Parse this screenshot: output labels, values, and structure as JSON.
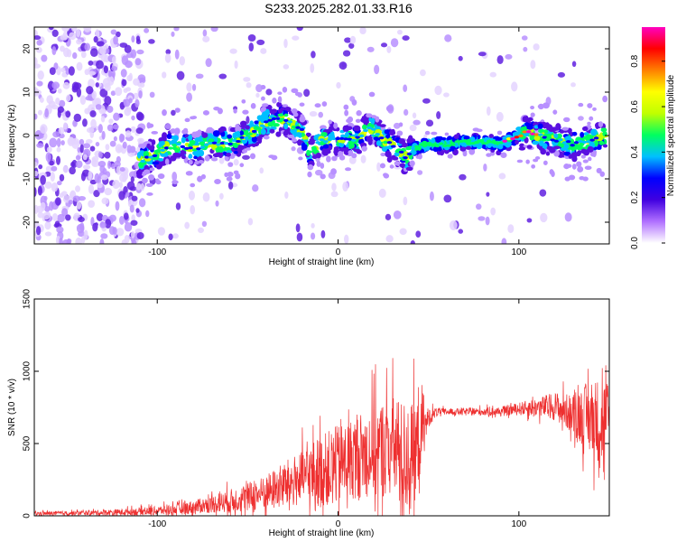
{
  "title": "S233.2025.282.01.33.R16",
  "chart_data": [
    {
      "type": "heatmap",
      "xlabel": "Height of straight line (km)",
      "ylabel": "Frequency (Hz)",
      "xlim": [
        -168,
        150
      ],
      "ylim": [
        -25,
        25
      ],
      "xticks": [
        -100,
        0,
        100
      ],
      "yticks": [
        -20,
        -10,
        0,
        10,
        20
      ],
      "colorbar": {
        "label": "Normalized spectral amplitude",
        "range": [
          0,
          0.95
        ],
        "ticks": [
          "0.0",
          "0.2",
          "0.4",
          "0.6",
          "0.8"
        ],
        "tick_values": [
          0,
          0.2,
          0.4,
          0.6,
          0.8
        ],
        "colors": [
          "#ffffff",
          "#b070ff",
          "#4000e0",
          "#0000ff",
          "#00c0ff",
          "#00ff60",
          "#c0ff00",
          "#ffff00",
          "#ff8000",
          "#ff0000",
          "#ff00c0"
        ]
      },
      "ridge": {
        "x": [
          -110,
          -100,
          -90,
          -80,
          -70,
          -60,
          -50,
          -40,
          -30,
          -20,
          -15,
          -10,
          0,
          10,
          18,
          25,
          32,
          38,
          42,
          50,
          60,
          70,
          80,
          90,
          95,
          100,
          104,
          110,
          120,
          130,
          140,
          148
        ],
        "y": [
          -6,
          -4,
          -2,
          -3,
          -2,
          -2,
          0,
          3,
          4,
          1,
          -4,
          -1,
          -1,
          -1,
          2,
          -1,
          -3,
          -5,
          -3,
          -2,
          -2,
          -1.5,
          -1.5,
          -2,
          -1,
          0,
          1,
          0,
          -1,
          -2,
          -1,
          0
        ]
      }
    },
    {
      "type": "line",
      "xlabel": "Height of straight line (km)",
      "ylabel": "SNR (10 * v/v)",
      "xlim": [
        -168,
        150
      ],
      "ylim": [
        0,
        1500
      ],
      "xticks": [
        -100,
        0,
        100
      ],
      "yticks": [
        0,
        500,
        1000,
        1500
      ],
      "color": "#ee3030",
      "envelope": {
        "x": [
          -168,
          -140,
          -120,
          -100,
          -90,
          -80,
          -70,
          -60,
          -50,
          -40,
          -30,
          -20,
          -10,
          0,
          10,
          20,
          30,
          35,
          40,
          45,
          50,
          55,
          60,
          70,
          80,
          90,
          100,
          110,
          120,
          130,
          140,
          150
        ],
        "base": [
          15,
          20,
          25,
          35,
          45,
          60,
          80,
          100,
          130,
          160,
          210,
          260,
          310,
          350,
          410,
          450,
          480,
          420,
          380,
          520,
          680,
          720,
          720,
          720,
          720,
          720,
          740,
          750,
          760,
          700,
          680,
          650
        ],
        "spread": [
          25,
          30,
          40,
          55,
          70,
          85,
          110,
          150,
          180,
          220,
          300,
          350,
          450,
          500,
          520,
          600,
          650,
          700,
          750,
          500,
          120,
          50,
          40,
          50,
          50,
          60,
          80,
          120,
          180,
          250,
          500,
          550
        ]
      }
    }
  ]
}
